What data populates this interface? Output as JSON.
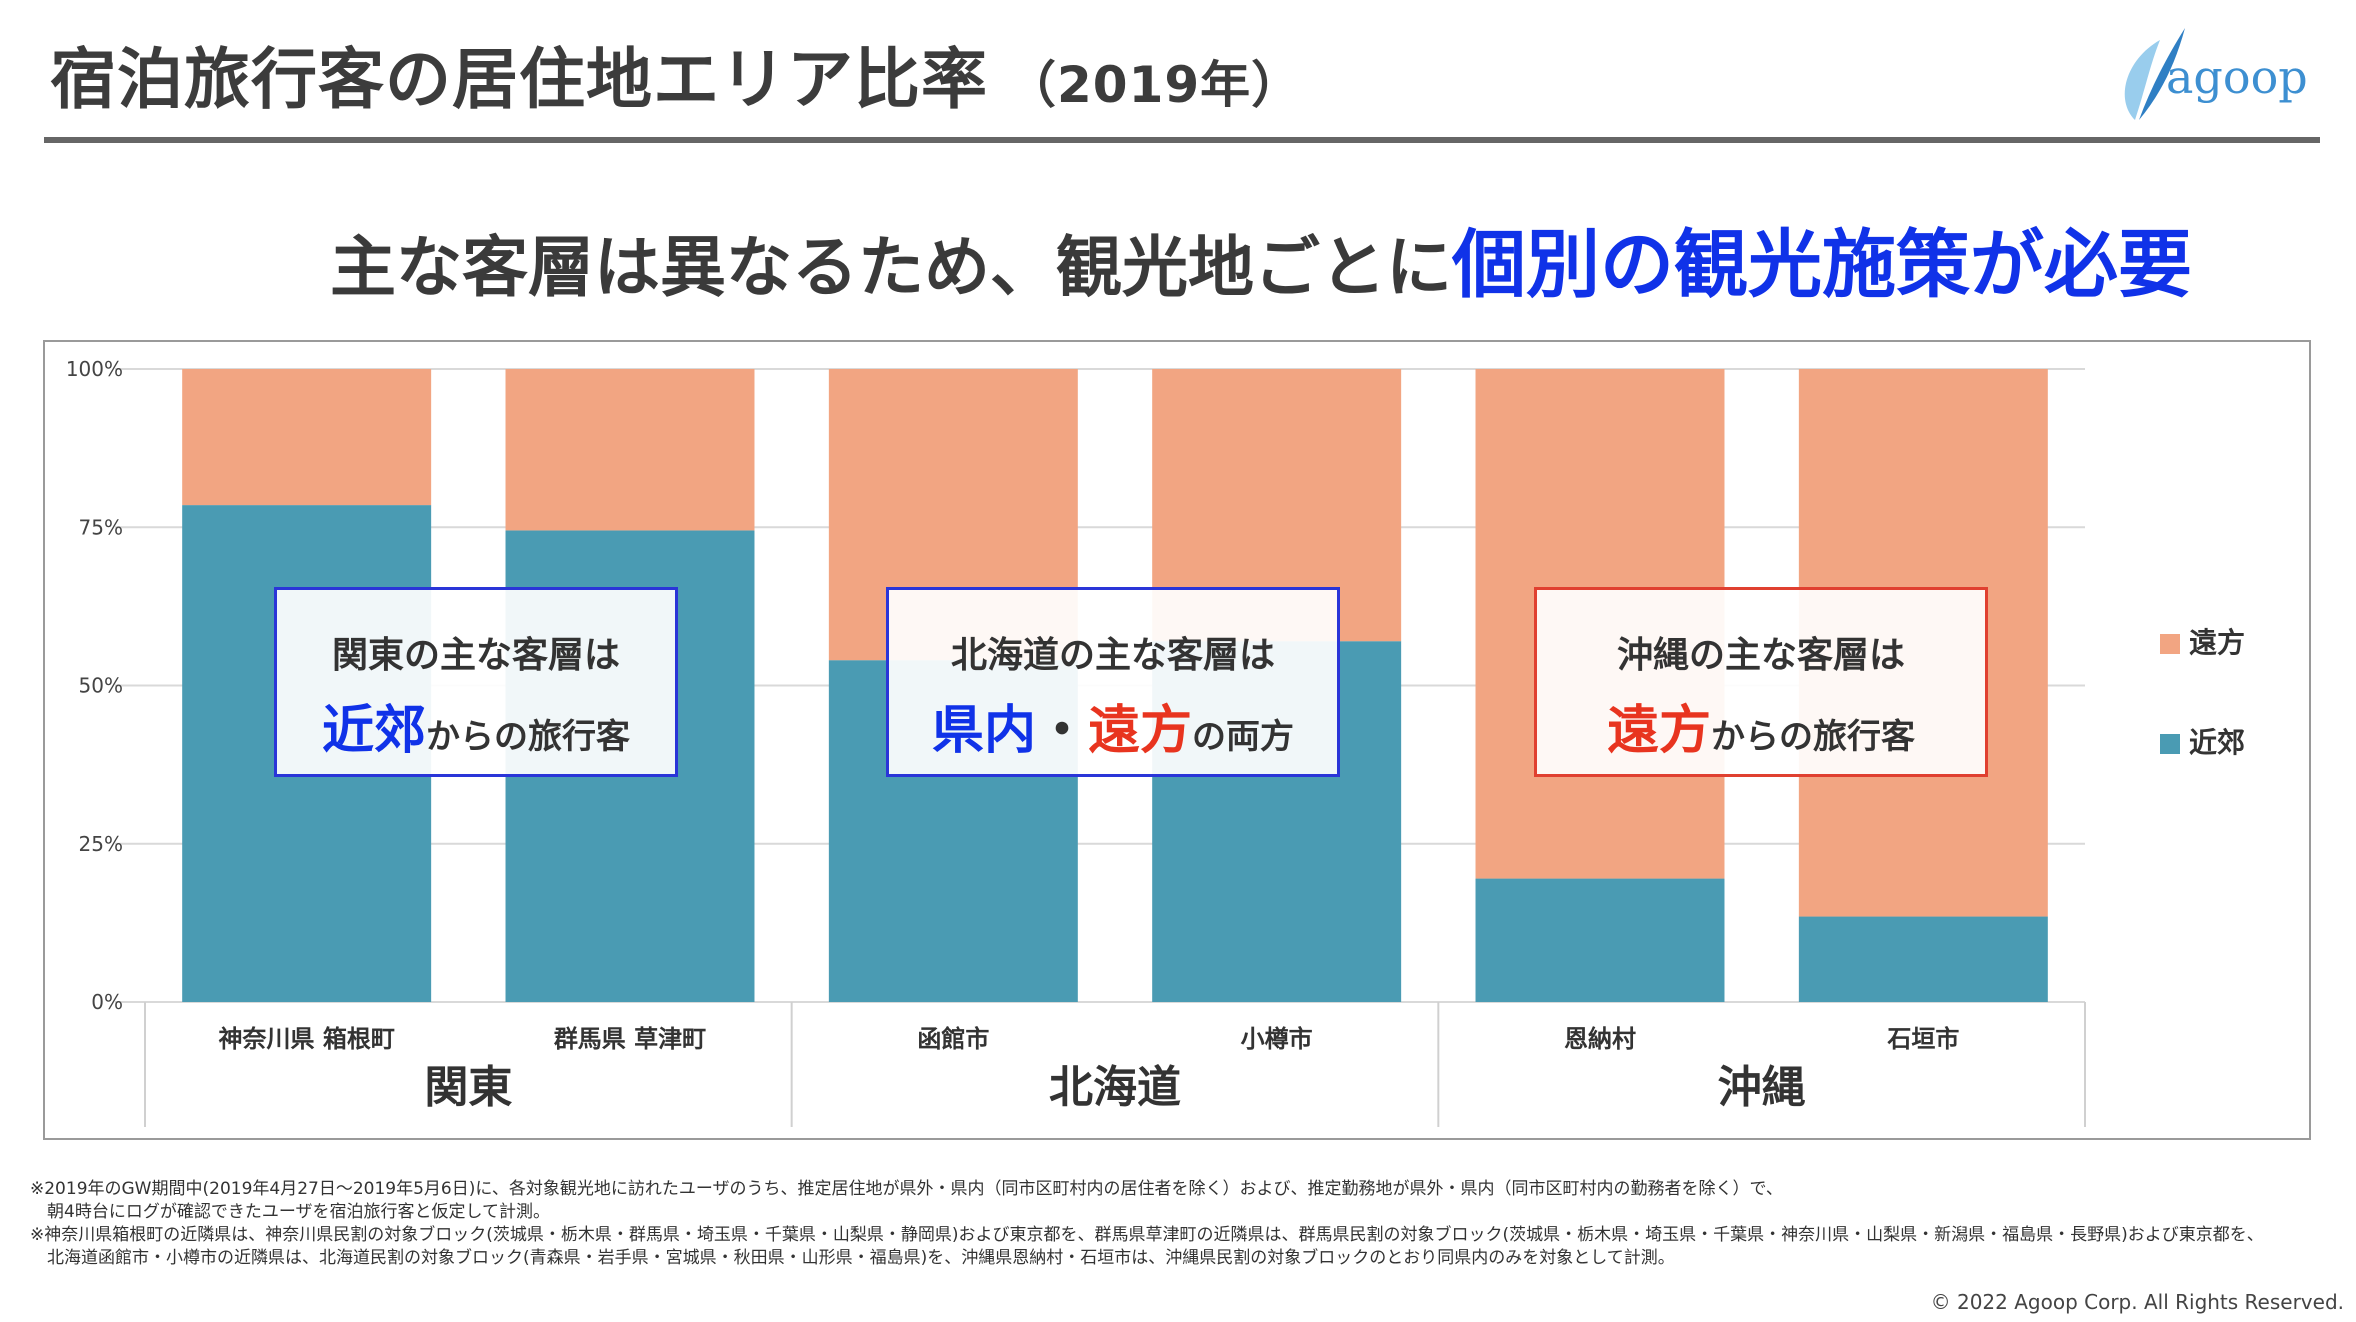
{
  "header": {
    "title": "宿泊旅行客の居住地エリア比率",
    "year": "（2019年）",
    "logo": "agoop"
  },
  "headline": {
    "lead": "主な客層は異なるため、観光地ごとに",
    "emphasis": "個別の観光施策が必要"
  },
  "colors": {
    "near": "#4a9bb3",
    "far": "#f2a582",
    "blue_text": "#1032e8",
    "red_text": "#e8341f"
  },
  "chart_data": {
    "type": "bar",
    "stacked": true,
    "categories": [
      "神奈川県 箱根町",
      "群馬県 草津町",
      "函館市",
      "小樽市",
      "恩納村",
      "石垣市"
    ],
    "groups": [
      {
        "label": "関東",
        "categories": [
          "神奈川県 箱根町",
          "群馬県 草津町"
        ]
      },
      {
        "label": "北海道",
        "categories": [
          "函館市",
          "小樽市"
        ]
      },
      {
        "label": "沖縄",
        "categories": [
          "恩納村",
          "石垣市"
        ]
      }
    ],
    "series": [
      {
        "name": "近郊",
        "values": [
          78.5,
          74.5,
          54,
          57,
          19.5,
          13.5
        ]
      },
      {
        "name": "遠方",
        "values": [
          21.5,
          25.5,
          46,
          43,
          80.5,
          86.5
        ]
      }
    ],
    "ylim": [
      0,
      100
    ],
    "yticks": [
      "0%",
      "25%",
      "50%",
      "75%",
      "100%"
    ],
    "grid": true,
    "legend_placement": "right"
  },
  "callouts": [
    {
      "line1": "関東の主な客層は",
      "emph1": "近郊",
      "rest": "からの旅行客"
    },
    {
      "line1": "北海道の主な客層は",
      "emph1": "県内",
      "sep": "・",
      "emph2": "遠方",
      "rest": "の両方"
    },
    {
      "line1": "沖縄の主な客層は",
      "emph1": "遠方",
      "rest": "からの旅行客"
    }
  ],
  "footnotes": [
    "※2019年のGW期間中(2019年4月27日～2019年5月6日)に、各対象観光地に訪れたユーザのうち、推定居住地が県外・県内（同市区町村内の居住者を除く）および、推定勤務地が県外・県内（同市区町村内の勤務者を除く）で、",
    "　朝4時台にログが確認できたユーザを宿泊旅行客と仮定して計測。",
    "※神奈川県箱根町の近隣県は、神奈川県民割の対象ブロック(茨城県・栃木県・群馬県・埼玉県・千葉県・山梨県・静岡県)および東京都を、群馬県草津町の近隣県は、群馬県民割の対象ブロック(茨城県・栃木県・埼玉県・千葉県・神奈川県・山梨県・新潟県・福島県・長野県)および東京都を、",
    "　北海道函館市・小樽市の近隣県は、北海道民割の対象ブロック(青森県・岩手県・宮城県・秋田県・山形県・福島県)を、沖縄県恩納村・石垣市は、沖縄県民割の対象ブロックのとおり同県内のみを対象として計測。"
  ],
  "copyright": "© 2022 Agoop Corp. All Rights Reserved."
}
